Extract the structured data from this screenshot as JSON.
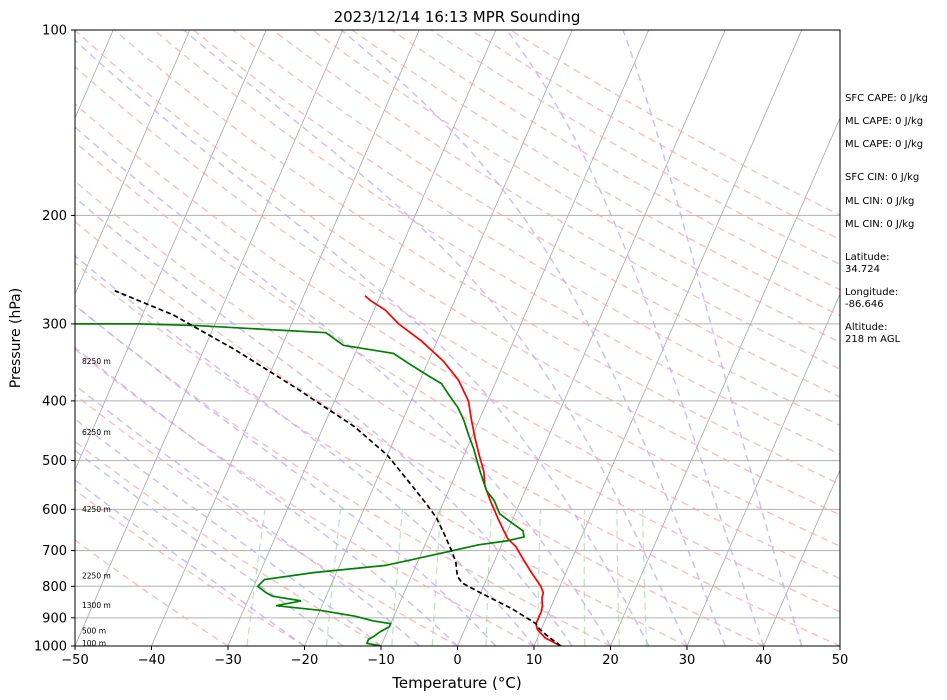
{
  "chart_data": {
    "type": "line",
    "title": "2023/12/14 16:13 MPR Sounding",
    "xlabel": "Temperature (°C)",
    "ylabel": "Pressure (hPa)",
    "xlim": [
      -50,
      50
    ],
    "ylim": [
      1000,
      100
    ],
    "y_scale": "log",
    "skew": 35,
    "x_ticks": [
      -50,
      -40,
      -30,
      -20,
      -10,
      0,
      10,
      20,
      30,
      40,
      50
    ],
    "x_tick_labels": [
      "−50",
      "−40",
      "−30",
      "−20",
      "−10",
      "0",
      "10",
      "20",
      "30",
      "40",
      "50"
    ],
    "y_ticks": [
      1000,
      900,
      800,
      700,
      600,
      500,
      400,
      300,
      200,
      100
    ],
    "y_tick_labels": [
      "1000",
      "900",
      "800",
      "700",
      "600",
      "500",
      "400",
      "300",
      "200",
      "100"
    ],
    "grid": true,
    "height_labels": [
      {
        "text": "100 m",
        "p": 990
      },
      {
        "text": "500 m",
        "p": 945
      },
      {
        "text": "1300 m",
        "p": 860
      },
      {
        "text": "2250 m",
        "p": 770
      },
      {
        "text": "4250 m",
        "p": 600
      },
      {
        "text": "6250 m",
        "p": 450
      },
      {
        "text": "8250 m",
        "p": 345
      }
    ],
    "series": [
      {
        "color": "#ff0000",
        "points": [
          [
            13.5,
            1000
          ],
          [
            11,
            970
          ],
          [
            9.5,
            940
          ],
          [
            9,
            920
          ],
          [
            9,
            900
          ],
          [
            9,
            880
          ],
          [
            8.8,
            860
          ],
          [
            8.5,
            845
          ],
          [
            8.3,
            835
          ],
          [
            8.2,
            820
          ],
          [
            7.5,
            800
          ],
          [
            5.5,
            760
          ],
          [
            3.5,
            720
          ],
          [
            2,
            690
          ],
          [
            0.5,
            670
          ],
          [
            -0.5,
            650
          ],
          [
            -2,
            620
          ],
          [
            -3,
            600
          ],
          [
            -4,
            580
          ],
          [
            -5.5,
            550
          ],
          [
            -6.5,
            520
          ],
          [
            -8,
            490
          ],
          [
            -9.5,
            460
          ],
          [
            -11,
            430
          ],
          [
            -12.5,
            400
          ],
          [
            -15,
            370
          ],
          [
            -18,
            345
          ],
          [
            -22,
            320
          ],
          [
            -26,
            300
          ],
          [
            -28.5,
            285
          ],
          [
            -31,
            275
          ],
          [
            -32,
            270
          ]
        ]
      },
      {
        "color": "#008000",
        "points": [
          [
            -10,
            1000
          ],
          [
            -12,
            990
          ],
          [
            -12,
            975
          ],
          [
            -11.5,
            965
          ],
          [
            -11,
            950
          ],
          [
            -10,
            930
          ],
          [
            -10,
            920
          ],
          [
            -12.5,
            910
          ],
          [
            -15,
            895
          ],
          [
            -20,
            875
          ],
          [
            -26,
            860
          ],
          [
            -23,
            845
          ],
          [
            -27,
            830
          ],
          [
            -28,
            820
          ],
          [
            -29.5,
            800
          ],
          [
            -29,
            780
          ],
          [
            -23,
            760
          ],
          [
            -14,
            740
          ],
          [
            -10,
            720
          ],
          [
            -6,
            700
          ],
          [
            -3,
            685
          ],
          [
            0.5,
            675
          ],
          [
            2.5,
            665
          ],
          [
            2,
            650
          ],
          [
            0,
            630
          ],
          [
            -2,
            610
          ],
          [
            -2.5,
            600
          ],
          [
            -3.5,
            580
          ],
          [
            -5,
            560
          ],
          [
            -6,
            540
          ],
          [
            -7,
            520
          ],
          [
            -8,
            500
          ],
          [
            -9,
            480
          ],
          [
            -10.5,
            455
          ],
          [
            -12,
            430
          ],
          [
            -13.5,
            410
          ],
          [
            -15.5,
            390
          ],
          [
            -17,
            375
          ],
          [
            -19,
            365
          ],
          [
            -22,
            350
          ],
          [
            -25,
            335
          ],
          [
            -32,
            325
          ],
          [
            -35,
            310
          ],
          [
            -52,
            302
          ],
          [
            -60,
            300
          ],
          [
            -100,
            300
          ]
        ]
      },
      {
        "color": "#000000",
        "points": [
          [
            13.5,
            1000
          ],
          [
            11,
            960
          ],
          [
            9.3,
            930
          ],
          [
            9,
            920
          ],
          [
            5,
            870
          ],
          [
            0,
            820
          ],
          [
            -3,
            790
          ],
          [
            -4,
            770
          ],
          [
            -5,
            730
          ],
          [
            -6.2,
            700
          ],
          [
            -8,
            660
          ],
          [
            -10,
            620
          ],
          [
            -12,
            590
          ],
          [
            -15,
            550
          ],
          [
            -20,
            490
          ],
          [
            -26,
            440
          ],
          [
            -36,
            380
          ],
          [
            -46,
            330
          ],
          [
            -56,
            290
          ],
          [
            -65,
            265
          ]
        ]
      }
    ]
  },
  "side_panel": {
    "sfc_cape": "SFC CAPE: 0 J/kg",
    "ml_cape_1": "ML CAPE: 0 J/kg",
    "ml_cape_2": "ML CAPE: 0 J/kg",
    "sfc_cin": "SFC CIN: 0 J/kg",
    "ml_cin_1": "ML CIN: 0 J/kg",
    "ml_cin_2": "ML CIN: 0 J/kg",
    "latitude": "Latitude:\n34.724",
    "longitude": "Longitude:\n-86.646",
    "altitude": "Altitude:\n218 m AGL"
  }
}
